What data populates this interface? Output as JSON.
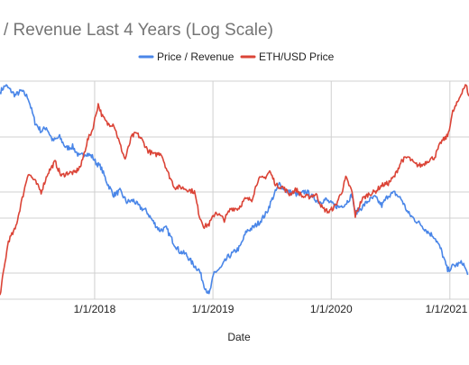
{
  "chart_data": {
    "type": "line",
    "title": "/ Revenue Last 4 Years (Log Scale)",
    "xlabel": "Date",
    "ylabel": "",
    "log_scale": true,
    "grid": true,
    "legend_position": "top",
    "x_ticks": [
      "1/1/2018",
      "1/1/2019",
      "1/1/2020",
      "1/1/2021"
    ],
    "x_tick_dates": [
      "2018-01-01",
      "2019-01-01",
      "2020-01-01",
      "2021-01-01"
    ],
    "x_range": [
      "2017-03-15",
      "2021-03-01"
    ],
    "series": [
      {
        "name": "Price / Revenue",
        "color": "#4a86e8",
        "x": [
          "2017-03-15",
          "2017-04-01",
          "2017-05-01",
          "2017-05-20",
          "2017-06-10",
          "2017-07-01",
          "2017-07-20",
          "2017-08-05",
          "2017-08-25",
          "2017-09-15",
          "2017-10-05",
          "2017-10-25",
          "2017-11-15",
          "2017-12-05",
          "2017-12-25",
          "2018-01-05",
          "2018-01-20",
          "2018-02-10",
          "2018-03-01",
          "2018-03-20",
          "2018-04-10",
          "2018-05-01",
          "2018-05-20",
          "2018-06-10",
          "2018-07-01",
          "2018-07-20",
          "2018-08-10",
          "2018-09-01",
          "2018-09-20",
          "2018-10-10",
          "2018-11-01",
          "2018-11-20",
          "2018-12-05",
          "2018-12-20",
          "2019-01-05",
          "2019-01-25",
          "2019-02-15",
          "2019-03-05",
          "2019-03-25",
          "2019-04-15",
          "2019-05-05",
          "2019-05-25",
          "2019-06-15",
          "2019-07-05",
          "2019-07-25",
          "2019-08-15",
          "2019-09-05",
          "2019-09-25",
          "2019-10-15",
          "2019-11-05",
          "2019-11-25",
          "2019-12-15",
          "2020-01-05",
          "2020-01-25",
          "2020-02-15",
          "2020-03-05",
          "2020-03-15",
          "2020-04-05",
          "2020-04-25",
          "2020-05-15",
          "2020-06-05",
          "2020-06-25",
          "2020-07-15",
          "2020-08-05",
          "2020-08-25",
          "2020-09-15",
          "2020-10-05",
          "2020-10-25",
          "2020-11-15",
          "2020-12-05",
          "2020-12-25",
          "2021-01-10",
          "2021-01-25",
          "2021-02-10",
          "2021-02-25"
        ],
        "values": [
          1.0,
          1.15,
          0.93,
          1.02,
          0.88,
          0.52,
          0.43,
          0.47,
          0.35,
          0.38,
          0.3,
          0.31,
          0.25,
          0.27,
          0.25,
          0.22,
          0.2,
          0.14,
          0.11,
          0.12,
          0.095,
          0.098,
          0.085,
          0.078,
          0.062,
          0.052,
          0.054,
          0.04,
          0.033,
          0.031,
          0.025,
          0.022,
          0.016,
          0.013,
          0.021,
          0.023,
          0.029,
          0.032,
          0.036,
          0.051,
          0.055,
          0.062,
          0.075,
          0.105,
          0.14,
          0.12,
          0.115,
          0.11,
          0.12,
          0.105,
          0.095,
          0.1,
          0.09,
          0.085,
          0.092,
          0.11,
          0.075,
          0.085,
          0.098,
          0.105,
          0.088,
          0.11,
          0.115,
          0.1,
          0.075,
          0.065,
          0.058,
          0.05,
          0.045,
          0.034,
          0.022,
          0.024,
          0.025,
          0.026,
          0.02
        ]
      },
      {
        "name": "ETH/USD Price",
        "color": "#db4437",
        "x": [
          "2017-03-15",
          "2017-04-10",
          "2017-05-01",
          "2017-05-20",
          "2017-06-10",
          "2017-07-01",
          "2017-07-20",
          "2017-08-10",
          "2017-09-01",
          "2017-09-20",
          "2017-10-10",
          "2017-11-01",
          "2017-11-20",
          "2017-12-10",
          "2017-12-25",
          "2018-01-12",
          "2018-01-25",
          "2018-02-10",
          "2018-03-01",
          "2018-03-20",
          "2018-04-05",
          "2018-04-25",
          "2018-05-10",
          "2018-05-25",
          "2018-06-15",
          "2018-07-05",
          "2018-07-25",
          "2018-08-15",
          "2018-09-05",
          "2018-09-25",
          "2018-10-15",
          "2018-11-05",
          "2018-11-20",
          "2018-12-05",
          "2018-12-20",
          "2019-01-10",
          "2019-02-05",
          "2019-02-25",
          "2019-03-20",
          "2019-04-10",
          "2019-05-01",
          "2019-05-20",
          "2019-06-10",
          "2019-06-25",
          "2019-07-15",
          "2019-08-05",
          "2019-08-25",
          "2019-09-15",
          "2019-10-05",
          "2019-10-25",
          "2019-11-15",
          "2019-12-05",
          "2019-12-25",
          "2020-01-15",
          "2020-02-05",
          "2020-02-15",
          "2020-03-05",
          "2020-03-15",
          "2020-04-05",
          "2020-04-25",
          "2020-05-15",
          "2020-06-05",
          "2020-06-25",
          "2020-07-15",
          "2020-08-05",
          "2020-08-25",
          "2020-09-15",
          "2020-10-05",
          "2020-10-25",
          "2020-11-15",
          "2020-12-05",
          "2020-12-25",
          "2021-01-10",
          "2021-01-25",
          "2021-02-10",
          "2021-02-20",
          "2021-03-01"
        ],
        "values": [
          22,
          70,
          90,
          160,
          300,
          250,
          200,
          300,
          380,
          280,
          300,
          300,
          350,
          600,
          750,
          1300,
          1000,
          850,
          850,
          550,
          400,
          650,
          700,
          620,
          480,
          440,
          460,
          300,
          220,
          220,
          210,
          200,
          120,
          95,
          100,
          130,
          110,
          140,
          140,
          170,
          170,
          260,
          270,
          310,
          230,
          220,
          190,
          210,
          180,
          180,
          190,
          140,
          130,
          150,
          210,
          270,
          200,
          120,
          170,
          190,
          200,
          230,
          240,
          280,
          390,
          420,
          360,
          350,
          390,
          420,
          580,
          660,
          1100,
          1350,
          1800,
          1950,
          1550
        ]
      }
    ]
  }
}
